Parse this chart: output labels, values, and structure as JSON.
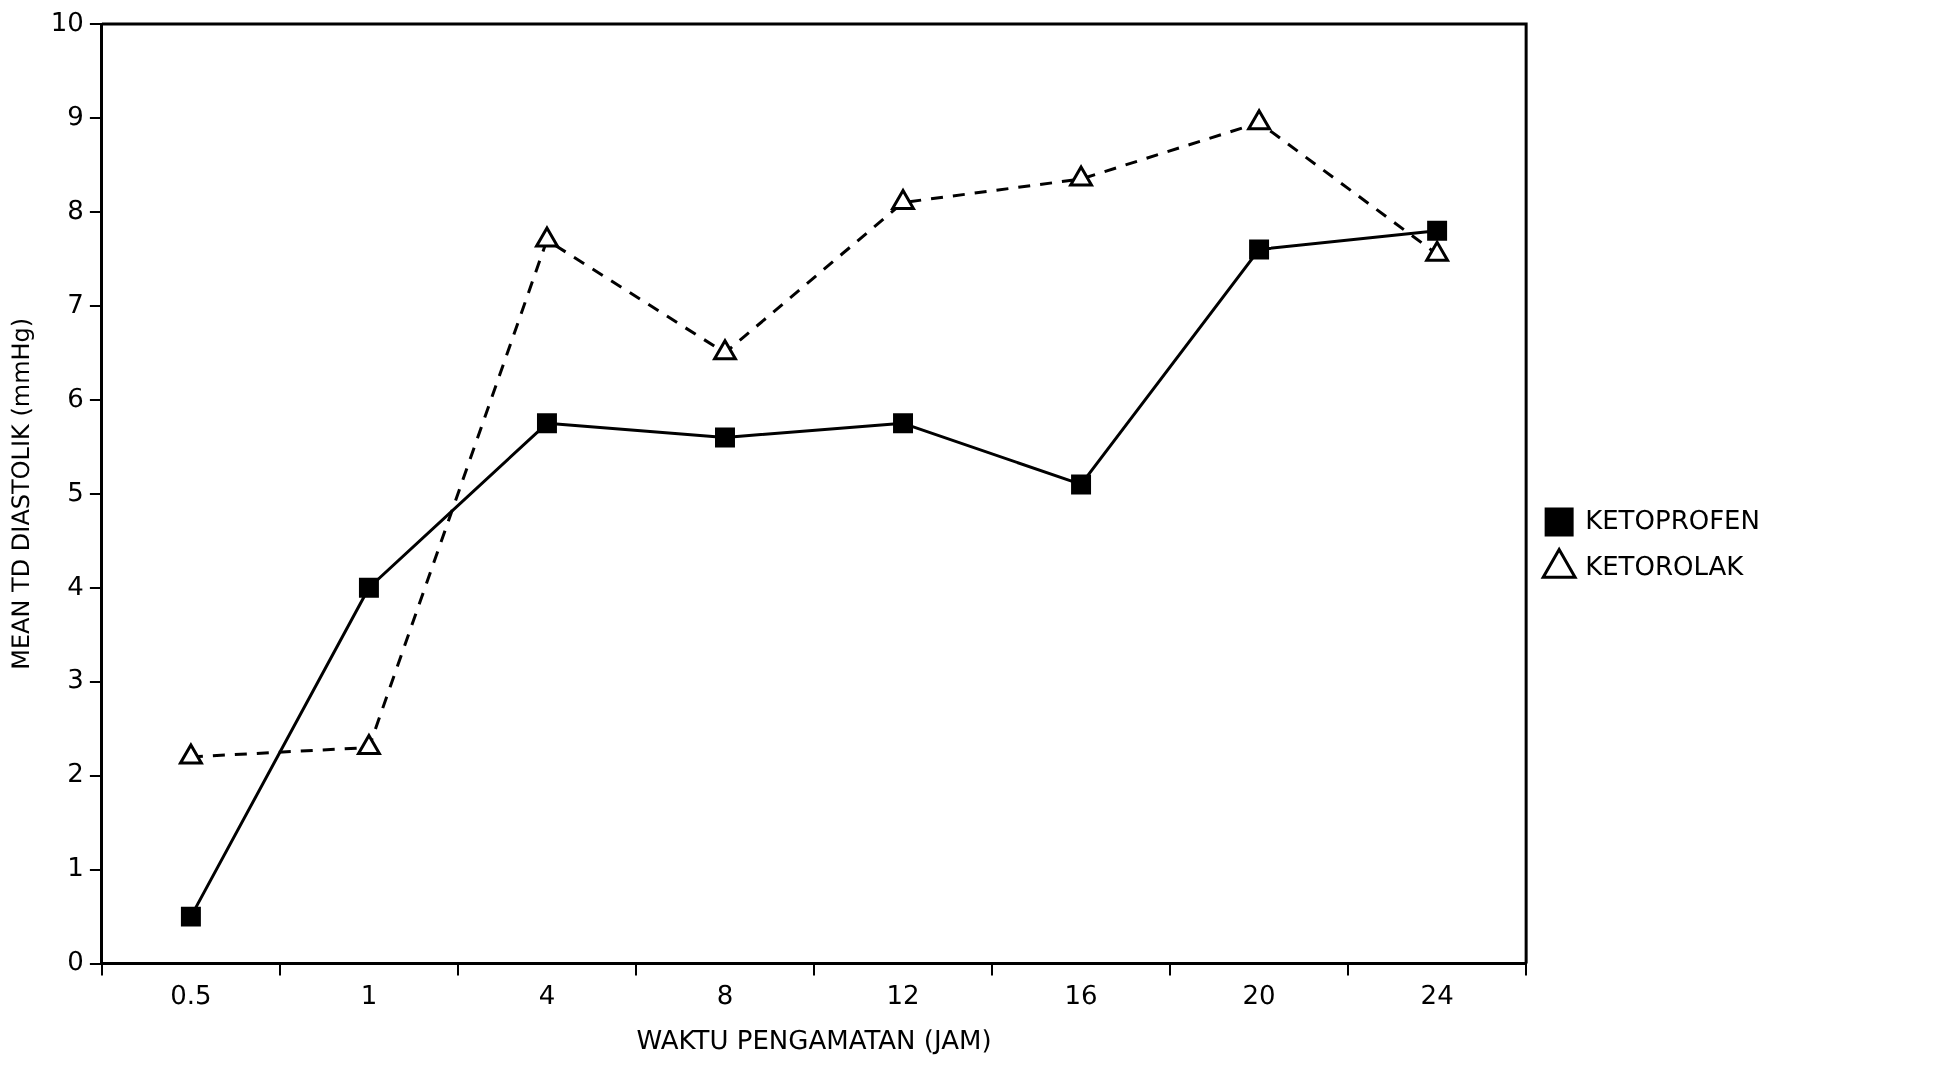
{
  "chart_data": {
    "type": "line",
    "xlabel": "WAKTU PENGAMATAN (JAM)",
    "ylabel": "MEAN TD DIASTOLIK (mmHg)",
    "categories": [
      "0.5",
      "1",
      "4",
      "8",
      "12",
      "16",
      "20",
      "24"
    ],
    "series": [
      {
        "name": "KETOPROFEN",
        "color": "#000000",
        "marker": "square",
        "line_style": "solid",
        "values": [
          0.5,
          4.0,
          5.75,
          5.6,
          5.75,
          5.1,
          7.6,
          7.8
        ]
      },
      {
        "name": "KETOROLAK",
        "color": "#000000",
        "marker": "triangle",
        "line_style": "dashed",
        "values": [
          2.2,
          2.3,
          7.7,
          6.5,
          8.1,
          8.35,
          8.95,
          7.55
        ]
      }
    ],
    "ylim": [
      0,
      10
    ],
    "yticks": [
      0,
      1,
      2,
      3,
      4,
      5,
      6,
      7,
      8,
      9,
      10
    ],
    "grid": false,
    "legend": "right"
  }
}
